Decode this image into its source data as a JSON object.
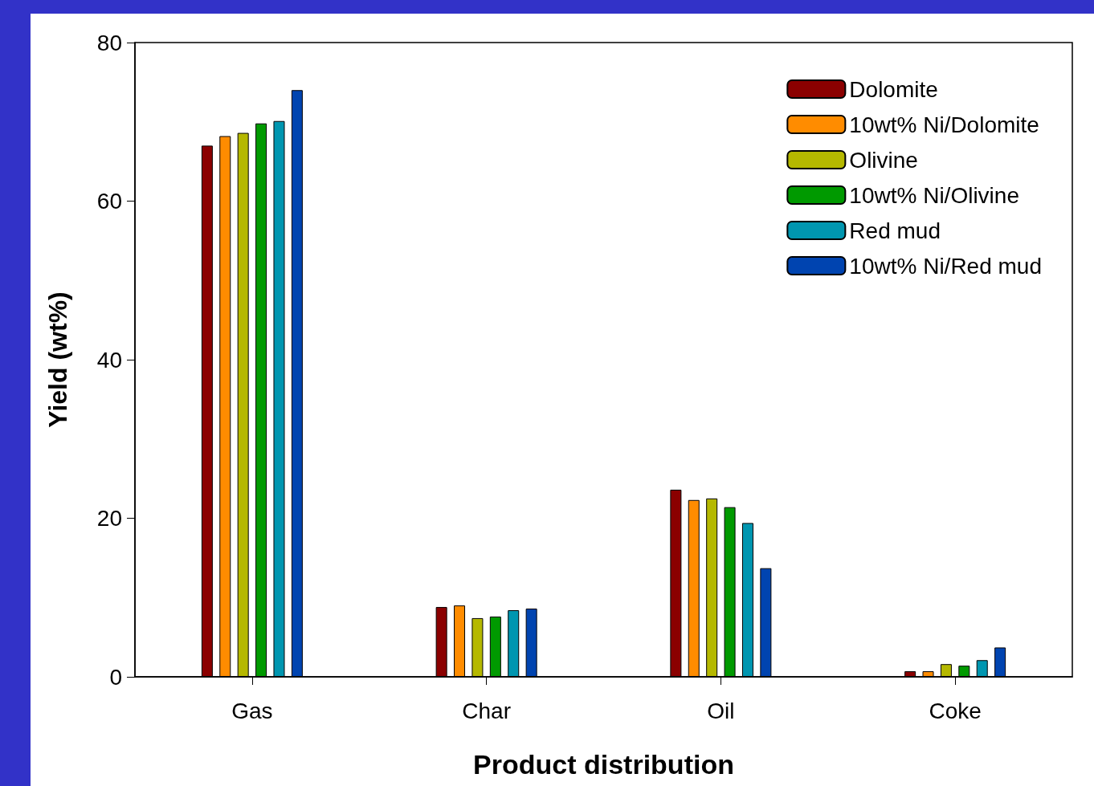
{
  "chart_data": {
    "type": "bar",
    "xlabel": "Product distribution",
    "ylabel": "Yield (wt%)",
    "categories": [
      "Gas",
      "Char",
      "Oil",
      "Coke"
    ],
    "series": [
      {
        "name": "Dolomite",
        "color": "#8b0000",
        "values": [
          67.0,
          8.8,
          23.6,
          0.7
        ]
      },
      {
        "name": "10wt% Ni/Dolomite",
        "color": "#ff8c00",
        "values": [
          68.2,
          9.0,
          22.3,
          0.7
        ]
      },
      {
        "name": "Olivine",
        "color": "#b5b800",
        "values": [
          68.6,
          7.4,
          22.5,
          1.6
        ]
      },
      {
        "name": "10wt% Ni/Olivine",
        "color": "#009a00",
        "values": [
          69.8,
          7.6,
          21.4,
          1.4
        ]
      },
      {
        "name": "Red mud",
        "color": "#0096b0",
        "values": [
          70.1,
          8.4,
          19.4,
          2.1
        ]
      },
      {
        "name": "10wt% Ni/Red mud",
        "color": "#0044b0",
        "values": [
          74.0,
          8.6,
          13.7,
          3.7
        ]
      }
    ],
    "ylim": [
      0,
      80
    ],
    "yticks": [
      0,
      20,
      40,
      60,
      80
    ],
    "grid": false,
    "legend": "top right"
  }
}
